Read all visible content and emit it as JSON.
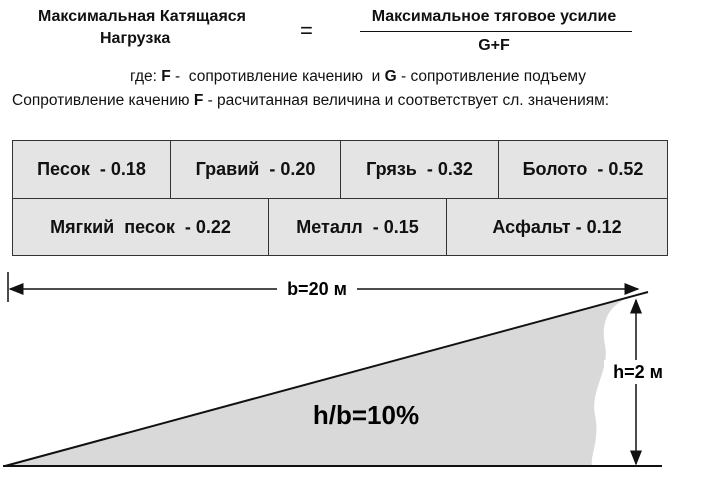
{
  "formula": {
    "left": [
      "Максимальная Катящаяся",
      "Нагрузка"
    ],
    "equals": "=",
    "numerator": "Максимальное тяговое усилие",
    "denominator": "G+F"
  },
  "notes": [
    [
      "где:",
      "F",
      "-  сопротивление качению  и",
      "G",
      "- сопротивление подъему"
    ],
    [
      "Сопротивление качению",
      "F",
      "- расчитанная величина и соответствует сл. значениям:"
    ]
  ],
  "table": {
    "rows": [
      [
        "Песок  - 0.18",
        "Гравий  - 0.20",
        "Грязь  - 0.32",
        "Болото  - 0.52"
      ],
      [
        "Мягкий  песок  - 0.22",
        "Металл  - 0.15",
        "Асфальт - 0.12"
      ]
    ]
  },
  "slope": {
    "base_label": "b=20 м",
    "height_label": "h=2 м",
    "ratio_label": "h/b=10%"
  }
}
